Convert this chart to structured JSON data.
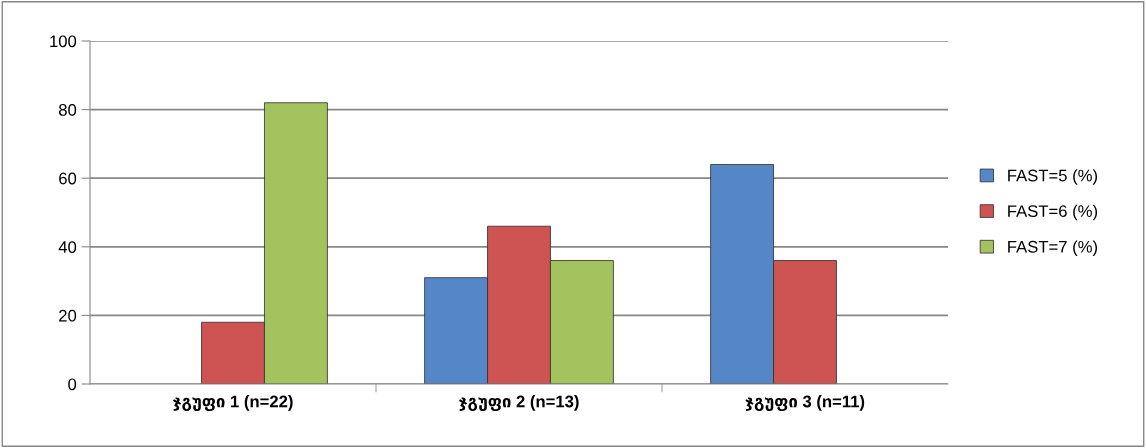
{
  "chart_data": {
    "type": "bar",
    "categories": [
      "ჯგუფი 1 (n=22)",
      "ჯგუფი 2 (n=13)",
      "ჯგუფი 3 (n=11)"
    ],
    "series": [
      {
        "name": "FAST=5 (%)",
        "color": "#5587c8",
        "values": [
          null,
          31,
          64
        ]
      },
      {
        "name": "FAST=6 (%)",
        "color": "#cd5452",
        "values": [
          18,
          46,
          36
        ]
      },
      {
        "name": "FAST=7 (%)",
        "color": "#a3c35e",
        "values": [
          82,
          36,
          null
        ]
      }
    ],
    "ylim": [
      0,
      100
    ],
    "yticks": [
      0,
      20,
      40,
      60,
      80,
      100
    ],
    "grid": "y",
    "legend": "right"
  }
}
